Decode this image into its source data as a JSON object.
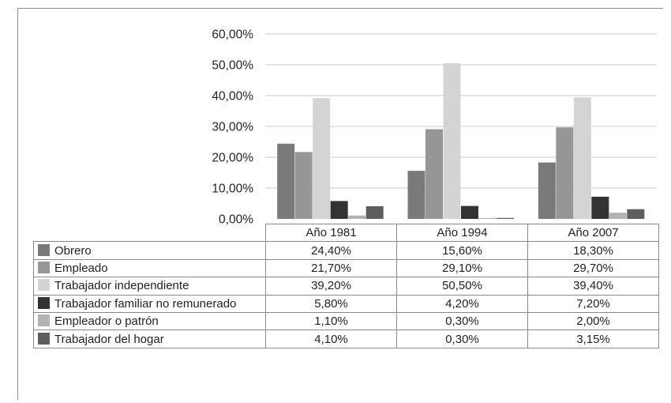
{
  "chart_data": {
    "type": "bar",
    "categories": [
      "Año 1981",
      "Año 1994",
      "Año 2007"
    ],
    "y_tick_labels": [
      "0,00%",
      "10,00%",
      "20,00%",
      "30,00%",
      "40,00%",
      "50,00%",
      "60,00%"
    ],
    "ylim": [
      0,
      60
    ],
    "grid": true,
    "series": [
      {
        "name": "Obrero",
        "color": "#7a7a7a",
        "values": [
          24.4,
          15.6,
          18.3
        ],
        "labels": [
          "24,40%",
          "15,60%",
          "18,30%"
        ]
      },
      {
        "name": "Empleado",
        "color": "#969696",
        "values": [
          21.7,
          29.1,
          29.7
        ],
        "labels": [
          "21,70%",
          "29,10%",
          "29,70%"
        ]
      },
      {
        "name": "Trabajador independiente",
        "color": "#d4d4d4",
        "values": [
          39.2,
          50.5,
          39.4
        ],
        "labels": [
          "39,20%",
          "50,50%",
          "39,40%"
        ]
      },
      {
        "name": "Trabajador familiar no remunerado",
        "color": "#333333",
        "values": [
          5.8,
          4.2,
          7.2
        ],
        "labels": [
          "5,80%",
          "4,20%",
          "7,20%"
        ]
      },
      {
        "name": "Empleador o patrón",
        "color": "#b3b3b3",
        "values": [
          1.1,
          0.3,
          2.0
        ],
        "labels": [
          "1,10%",
          "0,30%",
          "2,00%"
        ]
      },
      {
        "name": "Trabajador del hogar",
        "color": "#5e5e5e",
        "values": [
          4.1,
          0.3,
          3.15
        ],
        "labels": [
          "4,10%",
          "0,30%",
          "3,15%"
        ]
      }
    ]
  }
}
